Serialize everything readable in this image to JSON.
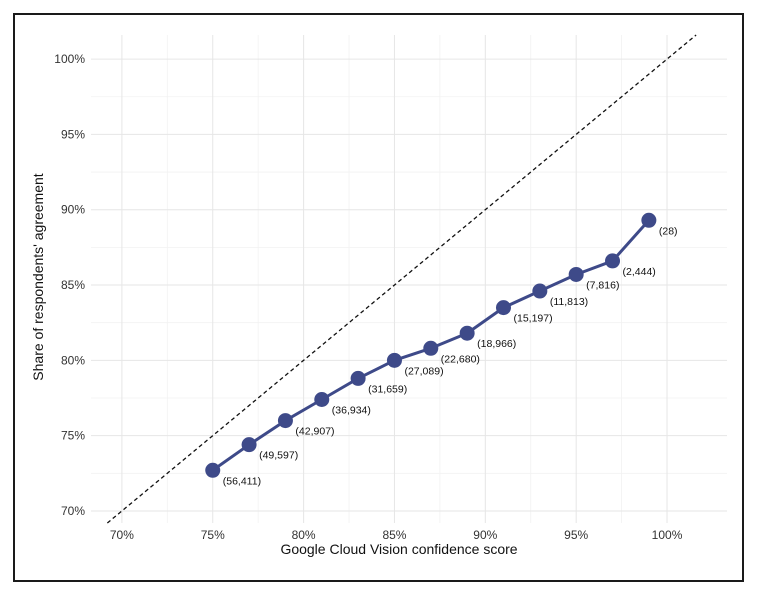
{
  "chart_data": {
    "type": "line",
    "title": "",
    "xlabel": "Google Cloud Vision confidence score",
    "ylabel": "Share of respondents' agreement",
    "x_ticks": [
      "70%",
      "75%",
      "80%",
      "85%",
      "90%",
      "95%",
      "100%"
    ],
    "x_tick_values": [
      70,
      75,
      80,
      85,
      90,
      95,
      100
    ],
    "y_ticks": [
      "70%",
      "75%",
      "80%",
      "85%",
      "90%",
      "95%",
      "100%"
    ],
    "y_tick_values": [
      70,
      75,
      80,
      85,
      90,
      95,
      100
    ],
    "xlim": [
      68.3,
      103.3
    ],
    "ylim": [
      69.2,
      101.6
    ],
    "grid": true,
    "reference_line": "y = x",
    "series": [
      {
        "color": "#3e4a89",
        "x": [
          75,
          77,
          79,
          81,
          83,
          85,
          87,
          89,
          91,
          93,
          95,
          97,
          99
        ],
        "y": [
          72.7,
          74.4,
          76.0,
          77.4,
          78.8,
          80.0,
          80.8,
          81.8,
          83.5,
          84.6,
          85.7,
          86.6,
          89.3
        ],
        "labels": [
          "(56,411)",
          "(49,597)",
          "(42,907)",
          "(36,934)",
          "(31,659)",
          "(27,089)",
          "(22,680)",
          "(18,966)",
          "(15,197)",
          "(11,813)",
          "(7,816)",
          "(2,444)",
          "(28)"
        ]
      }
    ]
  }
}
